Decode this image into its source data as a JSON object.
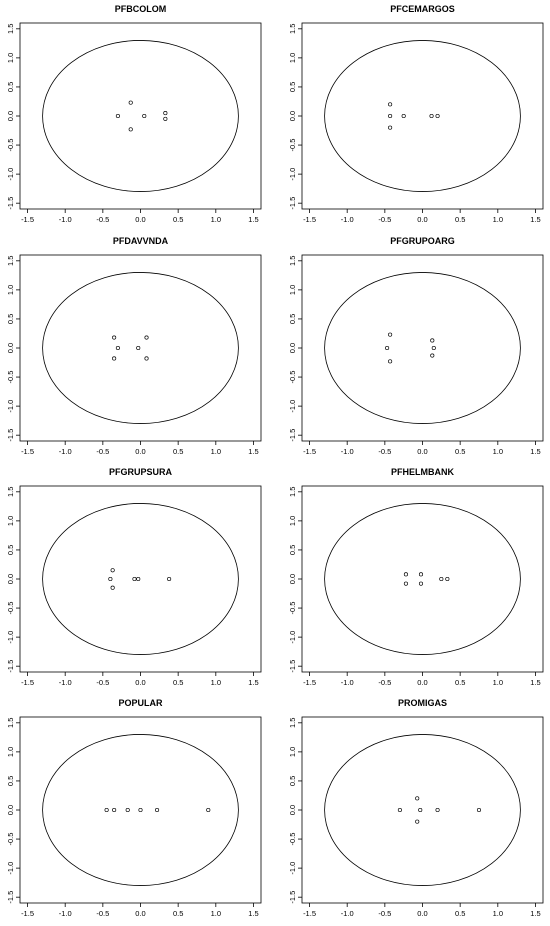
{
  "chart_data": [
    {
      "type": "scatter",
      "title": "PFBCOLOM",
      "xlim": [
        -1.6,
        1.6
      ],
      "ylim": [
        -1.6,
        1.6
      ],
      "xticks": [
        "-1.5",
        "-1.0",
        "-0.5",
        "0.0",
        "0.5",
        "1.0",
        "1.5"
      ],
      "yticks": [
        "-1.5",
        "-1.0",
        "-0.5",
        "0.0",
        "0.5",
        "1.0",
        "1.5"
      ],
      "circle_radius": 1.3,
      "points": [
        [
          -0.3,
          0.0
        ],
        [
          -0.13,
          0.23
        ],
        [
          -0.13,
          -0.23
        ],
        [
          0.05,
          0.0
        ],
        [
          0.33,
          0.05
        ],
        [
          0.33,
          -0.05
        ]
      ]
    },
    {
      "type": "scatter",
      "title": "PFCEMARGOS",
      "xlim": [
        -1.6,
        1.6
      ],
      "ylim": [
        -1.6,
        1.6
      ],
      "xticks": [
        "-1.5",
        "-1.0",
        "-0.5",
        "0.0",
        "0.5",
        "1.0",
        "1.5"
      ],
      "yticks": [
        "-1.5",
        "-1.0",
        "-0.5",
        "0.0",
        "0.5",
        "1.0",
        "1.5"
      ],
      "circle_radius": 1.3,
      "points": [
        [
          -0.43,
          0.2
        ],
        [
          -0.43,
          0.0
        ],
        [
          -0.43,
          -0.2
        ],
        [
          -0.25,
          0.0
        ],
        [
          0.12,
          0.0
        ],
        [
          0.2,
          0.0
        ]
      ]
    },
    {
      "type": "scatter",
      "title": "PFDAVVNDA",
      "xlim": [
        -1.6,
        1.6
      ],
      "ylim": [
        -1.6,
        1.6
      ],
      "xticks": [
        "-1.5",
        "-1.0",
        "-0.5",
        "0.0",
        "0.5",
        "1.0",
        "1.5"
      ],
      "yticks": [
        "-1.5",
        "-1.0",
        "-0.5",
        "0.0",
        "0.5",
        "1.0",
        "1.5"
      ],
      "circle_radius": 1.3,
      "points": [
        [
          -0.35,
          0.18
        ],
        [
          -0.3,
          0.0
        ],
        [
          -0.35,
          -0.18
        ],
        [
          -0.03,
          0.0
        ],
        [
          0.08,
          0.18
        ],
        [
          0.08,
          -0.18
        ]
      ]
    },
    {
      "type": "scatter",
      "title": "PFGRUPOARG",
      "xlim": [
        -1.6,
        1.6
      ],
      "ylim": [
        -1.6,
        1.6
      ],
      "xticks": [
        "-1.5",
        "-1.0",
        "-0.5",
        "0.0",
        "0.5",
        "1.0",
        "1.5"
      ],
      "yticks": [
        "-1.5",
        "-1.0",
        "-0.5",
        "0.0",
        "0.5",
        "1.0",
        "1.5"
      ],
      "circle_radius": 1.3,
      "points": [
        [
          -0.43,
          0.23
        ],
        [
          -0.47,
          0.0
        ],
        [
          -0.43,
          -0.23
        ],
        [
          0.13,
          0.13
        ],
        [
          0.15,
          0.0
        ],
        [
          0.13,
          -0.13
        ]
      ]
    },
    {
      "type": "scatter",
      "title": "PFGRUPSURA",
      "xlim": [
        -1.6,
        1.6
      ],
      "ylim": [
        -1.6,
        1.6
      ],
      "xticks": [
        "-1.5",
        "-1.0",
        "-0.5",
        "0.0",
        "0.5",
        "1.0",
        "1.5"
      ],
      "yticks": [
        "-1.5",
        "-1.0",
        "-0.5",
        "0.0",
        "0.5",
        "1.0",
        "1.5"
      ],
      "circle_radius": 1.3,
      "points": [
        [
          -0.37,
          0.15
        ],
        [
          -0.4,
          0.0
        ],
        [
          -0.37,
          -0.15
        ],
        [
          -0.08,
          0.0
        ],
        [
          -0.03,
          0.0
        ],
        [
          0.38,
          0.0
        ]
      ]
    },
    {
      "type": "scatter",
      "title": "PFHELMBANK",
      "xlim": [
        -1.6,
        1.6
      ],
      "ylim": [
        -1.6,
        1.6
      ],
      "xticks": [
        "-1.5",
        "-1.0",
        "-0.5",
        "0.0",
        "0.5",
        "1.0",
        "1.5"
      ],
      "yticks": [
        "-1.5",
        "-1.0",
        "-0.5",
        "0.0",
        "0.5",
        "1.0",
        "1.5"
      ],
      "circle_radius": 1.3,
      "points": [
        [
          -0.22,
          0.08
        ],
        [
          -0.22,
          -0.08
        ],
        [
          -0.02,
          0.08
        ],
        [
          -0.02,
          -0.08
        ],
        [
          0.25,
          0.0
        ],
        [
          0.33,
          0.0
        ]
      ]
    },
    {
      "type": "scatter",
      "title": "POPULAR",
      "xlim": [
        -1.6,
        1.6
      ],
      "ylim": [
        -1.6,
        1.6
      ],
      "xticks": [
        "-1.5",
        "-1.0",
        "-0.5",
        "0.0",
        "0.5",
        "1.0",
        "1.5"
      ],
      "yticks": [
        "-1.5",
        "-1.0",
        "-0.5",
        "0.0",
        "0.5",
        "1.0",
        "1.5"
      ],
      "circle_radius": 1.3,
      "points": [
        [
          -0.45,
          0.0
        ],
        [
          -0.35,
          0.0
        ],
        [
          -0.17,
          0.0
        ],
        [
          0.0,
          0.0
        ],
        [
          0.22,
          0.0
        ],
        [
          0.9,
          0.0
        ]
      ]
    },
    {
      "type": "scatter",
      "title": "PROMIGAS",
      "xlim": [
        -1.6,
        1.6
      ],
      "ylim": [
        -1.6,
        1.6
      ],
      "xticks": [
        "-1.5",
        "-1.0",
        "-0.5",
        "0.0",
        "0.5",
        "1.0",
        "1.5"
      ],
      "yticks": [
        "-1.5",
        "-1.0",
        "-0.5",
        "0.0",
        "0.5",
        "1.0",
        "1.5"
      ],
      "circle_radius": 1.3,
      "points": [
        [
          -0.3,
          0.0
        ],
        [
          -0.07,
          0.2
        ],
        [
          -0.03,
          0.0
        ],
        [
          -0.07,
          -0.2
        ],
        [
          0.2,
          0.0
        ],
        [
          0.75,
          0.0
        ]
      ]
    }
  ]
}
